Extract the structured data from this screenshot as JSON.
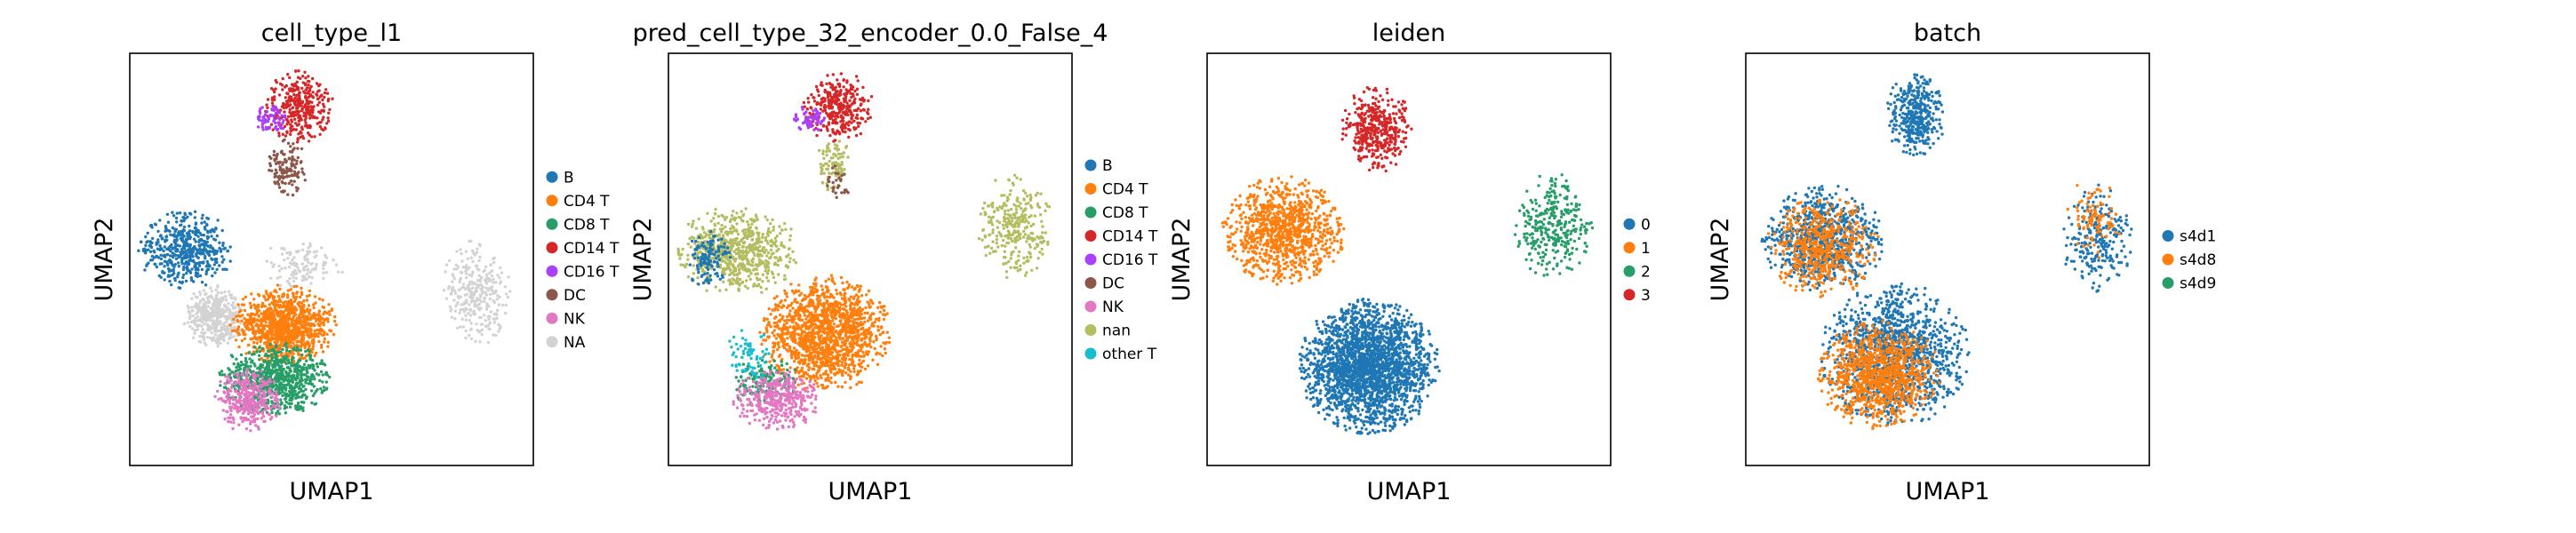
{
  "chart_data": [
    {
      "type": "scatter",
      "title": "cell_type_l1",
      "xlabel": "UMAP1",
      "ylabel": "UMAP2",
      "grid": false,
      "legend_position": "right",
      "legend": [
        {
          "label": "B",
          "color": "#1f77b4"
        },
        {
          "label": "CD4 T",
          "color": "#ff7f0e"
        },
        {
          "label": "CD8 T",
          "color": "#279e68"
        },
        {
          "label": "CD14 T",
          "color": "#d62728"
        },
        {
          "label": "CD16 T",
          "color": "#aa40fc"
        },
        {
          "label": "DC",
          "color": "#8c564b"
        },
        {
          "label": "NK",
          "color": "#e377c2"
        },
        {
          "label": "NA",
          "color": "#d3d3d3"
        }
      ],
      "clusters": [
        {
          "label": "NA",
          "cx": 0.21,
          "cy": 0.64,
          "rx": 0.07,
          "ry": 0.07,
          "n": 400
        },
        {
          "label": "NA",
          "cx": 0.86,
          "cy": 0.58,
          "rx": 0.08,
          "ry": 0.12,
          "n": 300
        },
        {
          "label": "NA",
          "cx": 0.43,
          "cy": 0.51,
          "rx": 0.1,
          "ry": 0.06,
          "n": 120
        },
        {
          "label": "B",
          "cx": 0.14,
          "cy": 0.48,
          "rx": 0.11,
          "ry": 0.09,
          "n": 500
        },
        {
          "label": "CD14 T",
          "cx": 0.42,
          "cy": 0.13,
          "rx": 0.08,
          "ry": 0.08,
          "n": 350
        },
        {
          "label": "CD16 T",
          "cx": 0.35,
          "cy": 0.16,
          "rx": 0.04,
          "ry": 0.03,
          "n": 70
        },
        {
          "label": "DC",
          "cx": 0.39,
          "cy": 0.28,
          "rx": 0.05,
          "ry": 0.07,
          "n": 130
        },
        {
          "label": "CD4 T",
          "cx": 0.38,
          "cy": 0.66,
          "rx": 0.12,
          "ry": 0.09,
          "n": 1000
        },
        {
          "label": "CD8 T",
          "cx": 0.36,
          "cy": 0.79,
          "rx": 0.13,
          "ry": 0.08,
          "n": 750
        },
        {
          "label": "NK",
          "cx": 0.29,
          "cy": 0.84,
          "rx": 0.08,
          "ry": 0.07,
          "n": 350
        }
      ]
    },
    {
      "type": "scatter",
      "title": "pred_cell_type_32_encoder_0.0_False_4",
      "xlabel": "UMAP1",
      "ylabel": "UMAP2",
      "grid": false,
      "legend_position": "right",
      "legend": [
        {
          "label": "B",
          "color": "#1f77b4"
        },
        {
          "label": "CD4 T",
          "color": "#ff7f0e"
        },
        {
          "label": "CD8 T",
          "color": "#279e68"
        },
        {
          "label": "CD14 T",
          "color": "#d62728"
        },
        {
          "label": "CD16 T",
          "color": "#aa40fc"
        },
        {
          "label": "DC",
          "color": "#8c564b"
        },
        {
          "label": "NK",
          "color": "#e377c2"
        },
        {
          "label": "nan",
          "color": "#b5bd61"
        },
        {
          "label": "other T",
          "color": "#17becf"
        }
      ],
      "clusters": [
        {
          "label": "nan",
          "cx": 0.17,
          "cy": 0.48,
          "rx": 0.14,
          "ry": 0.1,
          "n": 700
        },
        {
          "label": "nan",
          "cx": 0.86,
          "cy": 0.42,
          "rx": 0.09,
          "ry": 0.12,
          "n": 300
        },
        {
          "label": "nan",
          "cx": 0.41,
          "cy": 0.27,
          "rx": 0.04,
          "ry": 0.06,
          "n": 90
        },
        {
          "label": "B",
          "cx": 0.1,
          "cy": 0.5,
          "rx": 0.05,
          "ry": 0.07,
          "n": 120
        },
        {
          "label": "CD14 T",
          "cx": 0.42,
          "cy": 0.13,
          "rx": 0.08,
          "ry": 0.08,
          "n": 350
        },
        {
          "label": "CD16 T",
          "cx": 0.35,
          "cy": 0.16,
          "rx": 0.04,
          "ry": 0.03,
          "n": 60
        },
        {
          "label": "CD4 T",
          "cx": 0.39,
          "cy": 0.68,
          "rx": 0.15,
          "ry": 0.13,
          "n": 1400
        },
        {
          "label": "CD8 T",
          "cx": 0.24,
          "cy": 0.8,
          "rx": 0.08,
          "ry": 0.06,
          "n": 150
        },
        {
          "label": "NK",
          "cx": 0.27,
          "cy": 0.84,
          "rx": 0.1,
          "ry": 0.07,
          "n": 380
        },
        {
          "label": "other T",
          "cx": 0.2,
          "cy": 0.73,
          "rx": 0.05,
          "ry": 0.06,
          "n": 70
        },
        {
          "label": "DC",
          "cx": 0.42,
          "cy": 0.31,
          "rx": 0.03,
          "ry": 0.04,
          "n": 30
        }
      ]
    },
    {
      "type": "scatter",
      "title": "leiden",
      "xlabel": "UMAP1",
      "ylabel": "UMAP2",
      "grid": false,
      "legend_position": "right",
      "legend": [
        {
          "label": "0",
          "color": "#1f77b4"
        },
        {
          "label": "1",
          "color": "#ff7f0e"
        },
        {
          "label": "2",
          "color": "#279e68"
        },
        {
          "label": "3",
          "color": "#d62728"
        }
      ],
      "clusters": [
        {
          "label": "1",
          "cx": 0.19,
          "cy": 0.43,
          "rx": 0.14,
          "ry": 0.12,
          "n": 1000
        },
        {
          "label": "0",
          "cx": 0.4,
          "cy": 0.76,
          "rx": 0.16,
          "ry": 0.15,
          "n": 2300
        },
        {
          "label": "2",
          "cx": 0.86,
          "cy": 0.42,
          "rx": 0.09,
          "ry": 0.12,
          "n": 320
        },
        {
          "label": "3",
          "cx": 0.42,
          "cy": 0.18,
          "rx": 0.08,
          "ry": 0.1,
          "n": 420
        }
      ]
    },
    {
      "type": "scatter",
      "title": "batch",
      "xlabel": "UMAP1",
      "ylabel": "UMAP2",
      "grid": false,
      "legend_position": "right",
      "legend": [
        {
          "label": "s4d1",
          "color": "#1f77b4"
        },
        {
          "label": "s4d8",
          "color": "#ff7f0e"
        },
        {
          "label": "s4d9",
          "color": "#279e68"
        }
      ],
      "clusters": [
        {
          "label": "s4d1",
          "cx": 0.19,
          "cy": 0.45,
          "rx": 0.14,
          "ry": 0.12,
          "n": 800
        },
        {
          "label": "s4d8",
          "cx": 0.19,
          "cy": 0.47,
          "rx": 0.13,
          "ry": 0.11,
          "n": 550
        },
        {
          "label": "s4d1",
          "cx": 0.37,
          "cy": 0.73,
          "rx": 0.17,
          "ry": 0.16,
          "n": 1300
        },
        {
          "label": "s4d8",
          "cx": 0.33,
          "cy": 0.78,
          "rx": 0.14,
          "ry": 0.12,
          "n": 1000
        },
        {
          "label": "s4d1",
          "cx": 0.42,
          "cy": 0.15,
          "rx": 0.07,
          "ry": 0.09,
          "n": 380
        },
        {
          "label": "s4d1",
          "cx": 0.87,
          "cy": 0.45,
          "rx": 0.08,
          "ry": 0.12,
          "n": 230
        },
        {
          "label": "s4d8",
          "cx": 0.86,
          "cy": 0.4,
          "rx": 0.07,
          "ry": 0.09,
          "n": 90
        }
      ]
    }
  ]
}
